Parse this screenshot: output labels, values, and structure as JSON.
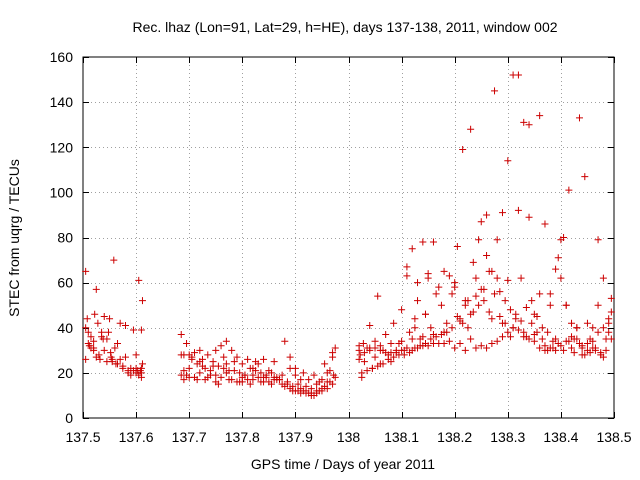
{
  "chart_data": {
    "type": "scatter",
    "title": "Rec. lhaz (Lon=91, Lat=29, h=HE), days 137-138, 2011, window 002",
    "xlabel": "GPS time / Days of year 2011",
    "ylabel": "STEC from uqrg / TECUs",
    "xlim": [
      137.5,
      138.5
    ],
    "ylim": [
      0,
      160
    ],
    "xticks": [
      137.5,
      137.6,
      137.7,
      137.8,
      137.9,
      138,
      138.1,
      138.2,
      138.3,
      138.4,
      138.5
    ],
    "xtick_labels": [
      "137.5",
      "137.6",
      "137.7",
      "137.8",
      "137.9",
      "138",
      "138.1",
      "138.2",
      "138.3",
      "138.4",
      "138.5"
    ],
    "yticks": [
      0,
      20,
      40,
      60,
      80,
      100,
      120,
      140,
      160
    ],
    "ytick_labels": [
      "0",
      "20",
      "40",
      "60",
      "80",
      "100",
      "120",
      "140",
      "160"
    ],
    "grid": true,
    "marker": "plus",
    "color": "#cc0000",
    "series": [
      {
        "x": [
          137.505,
          137.505,
          137.508,
          137.512,
          137.515,
          137.52,
          137.522,
          137.525,
          137.528,
          137.532,
          137.535,
          137.538,
          137.54,
          137.545,
          137.548,
          137.552,
          137.555,
          137.558,
          137.562,
          137.565,
          137.57,
          137.575,
          137.58,
          137.585,
          137.59,
          137.595,
          137.6,
          137.605,
          137.61,
          137.61,
          137.612,
          137.505,
          137.51,
          137.52,
          137.53,
          137.54,
          137.55,
          137.56,
          137.57,
          137.58,
          137.59,
          137.6,
          137.605,
          137.61,
          137.51,
          137.515,
          137.525,
          137.535,
          137.545,
          137.555,
          137.565,
          137.575,
          137.585,
          137.595,
          137.603,
          137.608,
          137.612,
          137.553,
          137.6,
          137.61,
          137.52
        ],
        "y": [
          65,
          40,
          44,
          32,
          36,
          30,
          46,
          57,
          42,
          26,
          38,
          35,
          30,
          25,
          38,
          29,
          25,
          70,
          24,
          33,
          26,
          22,
          41,
          20,
          19,
          39,
          20,
          61,
          39,
          22,
          52,
          26,
          38,
          34,
          28,
          45,
          44,
          31,
          42,
          27,
          22,
          28,
          19,
          18,
          33,
          31,
          27,
          36,
          35,
          26,
          24,
          23,
          21,
          21,
          21,
          21,
          24,
          27,
          22,
          20,
          31
        ]
      },
      {
        "x": [
          137.685,
          137.69,
          137.69,
          137.695,
          137.7,
          137.705,
          137.71,
          137.715,
          137.72,
          137.725,
          137.73,
          137.735,
          137.74,
          137.745,
          137.75,
          137.755,
          137.76,
          137.765,
          137.77,
          137.775,
          137.78,
          137.785,
          137.79,
          137.795,
          137.8,
          137.805,
          137.81,
          137.815,
          137.82,
          137.825,
          137.83,
          137.835,
          137.84,
          137.845,
          137.85,
          137.855,
          137.86,
          137.865,
          137.87,
          137.875,
          137.685,
          137.69,
          137.7,
          137.71,
          137.72,
          137.73,
          137.74,
          137.75,
          137.76,
          137.77,
          137.78,
          137.79,
          137.8,
          137.81,
          137.82,
          137.83,
          137.84,
          137.85,
          137.86,
          137.87,
          137.685,
          137.695,
          137.705,
          137.715,
          137.725,
          137.735,
          137.745,
          137.755,
          137.765,
          137.775,
          137.785,
          137.795,
          137.805,
          137.815,
          137.825,
          137.835,
          137.845,
          137.855,
          137.865,
          137.875,
          137.7,
          137.72,
          137.75,
          137.77,
          137.8,
          137.82,
          137.84,
          137.86
        ],
        "y": [
          37,
          28,
          21,
          33,
          28,
          27,
          29,
          24,
          30,
          23,
          22,
          28,
          21,
          25,
          30,
          23,
          32,
          27,
          34,
          21,
          30,
          25,
          27,
          20,
          24,
          19,
          26,
          22,
          22,
          25,
          24,
          20,
          26,
          19,
          21,
          20,
          25,
          18,
          17,
          19,
          19,
          17,
          18,
          18,
          20,
          17,
          19,
          16,
          18,
          20,
          17,
          16,
          16,
          17,
          17,
          18,
          16,
          16,
          18,
          17,
          28,
          19,
          26,
          17,
          26,
          18,
          23,
          15,
          22,
          17,
          21,
          16,
          19,
          15,
          21,
          16,
          18,
          15,
          17,
          15,
          22,
          25,
          19,
          24,
          18,
          19,
          18,
          17
        ]
      },
      {
        "x": [
          137.88,
          137.885,
          137.89,
          137.895,
          137.9,
          137.905,
          137.91,
          137.915,
          137.92,
          137.925,
          137.93,
          137.935,
          137.94,
          137.945,
          137.95,
          137.955,
          137.96,
          137.965,
          137.97,
          137.975,
          137.88,
          137.89,
          137.9,
          137.91,
          137.92,
          137.93,
          137.94,
          137.95,
          137.96,
          137.97,
          137.975,
          137.885,
          137.895,
          137.905,
          137.915,
          137.925,
          137.935,
          137.945,
          137.955,
          137.965,
          137.972,
          137.89,
          137.9,
          137.91,
          137.92,
          137.93,
          137.94,
          137.95,
          137.96,
          137.97
        ],
        "y": [
          34,
          16,
          27,
          12,
          22,
          15,
          13,
          20,
          12,
          17,
          11,
          19,
          12,
          16,
          13,
          24,
          16,
          21,
          27,
          31,
          14,
          13,
          12,
          11,
          11,
          10,
          11,
          12,
          13,
          15,
          18,
          15,
          14,
          12,
          12,
          11,
          10,
          12,
          14,
          16,
          19,
          22,
          19,
          17,
          14,
          13,
          15,
          17,
          20,
          29
        ]
      },
      {
        "x": [
          138.02,
          138.022,
          138.025,
          138.028,
          138.03,
          138.035,
          138.04,
          138.045,
          138.05,
          138.055,
          138.06,
          138.065,
          138.07,
          138.075,
          138.08,
          138.085,
          138.09,
          138.095,
          138.1,
          138.105,
          138.11,
          138.115,
          138.12,
          138.125,
          138.13,
          138.135,
          138.14,
          138.145,
          138.15,
          138.155,
          138.16,
          138.165,
          138.17,
          138.175,
          138.18,
          138.185,
          138.19,
          138.195,
          138.02,
          138.03,
          138.04,
          138.05,
          138.06,
          138.07,
          138.08,
          138.09,
          138.1,
          138.11,
          138.12,
          138.13,
          138.14,
          138.15,
          138.16,
          138.17,
          138.18,
          138.19,
          138.025,
          138.035,
          138.045,
          138.055,
          138.065,
          138.075,
          138.085,
          138.095,
          138.105,
          138.115,
          138.125,
          138.135,
          138.145,
          138.155,
          138.165,
          138.175,
          138.185,
          138.195,
          138.02,
          138.04,
          138.06,
          138.08,
          138.1,
          138.12,
          138.14,
          138.16,
          138.18,
          138.05,
          138.11,
          138.125,
          138.13,
          138.145,
          138.15
        ],
        "y": [
          32,
          28,
          18,
          33,
          25,
          31,
          41,
          22,
          27,
          54,
          24,
          30,
          37,
          28,
          25,
          42,
          29,
          33,
          48,
          30,
          67,
          38,
          75,
          44,
          60,
          35,
          78,
          46,
          64,
          40,
          78,
          55,
          58,
          50,
          65,
          42,
          63,
          55,
          26,
          29,
          30,
          31,
          30,
          29,
          29,
          30,
          30,
          31,
          30,
          31,
          32,
          32,
          33,
          33,
          33,
          34,
          20,
          21,
          22,
          23,
          24,
          26,
          27,
          28,
          28,
          29,
          31,
          32,
          33,
          35,
          36,
          37,
          38,
          40,
          30,
          31,
          32,
          33,
          34,
          35,
          36,
          37,
          38,
          34,
          63,
          40,
          52,
          46,
          62
        ]
      },
      {
        "x": [
          138.2,
          138.205,
          138.21,
          138.215,
          138.22,
          138.225,
          138.23,
          138.235,
          138.24,
          138.245,
          138.25,
          138.255,
          138.26,
          138.265,
          138.27,
          138.275,
          138.28,
          138.285,
          138.29,
          138.295,
          138.3,
          138.305,
          138.31,
          138.315,
          138.32,
          138.325,
          138.33,
          138.335,
          138.34,
          138.345,
          138.35,
          138.355,
          138.36,
          138.365,
          138.37,
          138.375,
          138.38,
          138.385,
          138.39,
          138.395,
          138.4,
          138.2,
          138.21,
          138.22,
          138.23,
          138.24,
          138.25,
          138.26,
          138.27,
          138.28,
          138.29,
          138.3,
          138.31,
          138.32,
          138.33,
          138.34,
          138.35,
          138.36,
          138.37,
          138.38,
          138.39,
          138.4,
          138.205,
          138.215,
          138.225,
          138.235,
          138.245,
          138.255,
          138.265,
          138.275,
          138.285,
          138.295,
          138.305,
          138.315,
          138.325,
          138.335,
          138.345,
          138.355,
          138.365,
          138.375,
          138.385,
          138.395,
          138.2,
          138.22,
          138.24,
          138.26,
          138.28,
          138.3,
          138.32,
          138.34,
          138.36,
          138.38,
          138.4,
          138.21,
          138.23,
          138.25,
          138.27,
          138.29,
          138.31,
          138.33,
          138.35,
          138.37,
          138.39
        ],
        "y": [
          58,
          76,
          43,
          119,
          50,
          52,
          128,
          69,
          54,
          79,
          87,
          57,
          90,
          65,
          65,
          145,
          62,
          56,
          91,
          42,
          114,
          36,
          152,
          46,
          92,
          62,
          131,
          36,
          89,
          52,
          46,
          38,
          134,
          35,
          86,
          30,
          55,
          31,
          66,
          71,
          79,
          31,
          33,
          30,
          35,
          31,
          32,
          31,
          33,
          34,
          36,
          38,
          40,
          39,
          36,
          35,
          34,
          31,
          30,
          31,
          30,
          32,
          45,
          42,
          40,
          47,
          50,
          52,
          47,
          55,
          45,
          52,
          48,
          44,
          43,
          49,
          42,
          45,
          40,
          38,
          34,
          33,
          60,
          52,
          62,
          72,
          79,
          61,
          152,
          130,
          55,
          50,
          62,
          44,
          46,
          57,
          44,
          42,
          40,
          38,
          37,
          32,
          35
        ]
      },
      {
        "x": [
          138.405,
          138.41,
          138.415,
          138.42,
          138.425,
          138.43,
          138.435,
          138.44,
          138.445,
          138.45,
          138.455,
          138.46,
          138.465,
          138.47,
          138.475,
          138.48,
          138.485,
          138.49,
          138.495,
          138.405,
          138.415,
          138.425,
          138.435,
          138.445,
          138.455,
          138.465,
          138.475,
          138.485,
          138.495,
          138.41,
          138.42,
          138.43,
          138.44,
          138.45,
          138.46,
          138.47,
          138.48,
          138.49,
          138.495,
          138.41,
          138.43,
          138.45,
          138.47,
          138.49,
          138.42,
          138.44,
          138.46,
          138.48
        ],
        "y": [
          80,
          50,
          101,
          42,
          35,
          40,
          133,
          31,
          107,
          30,
          35,
          40,
          30,
          79,
          28,
          62,
          35,
          38,
          53,
          30,
          34,
          29,
          33,
          28,
          29,
          31,
          29,
          30,
          35,
          34,
          36,
          35,
          32,
          33,
          34,
          38,
          40,
          42,
          47,
          50,
          40,
          42,
          50,
          44,
          31,
          28,
          31,
          27
        ]
      }
    ]
  }
}
